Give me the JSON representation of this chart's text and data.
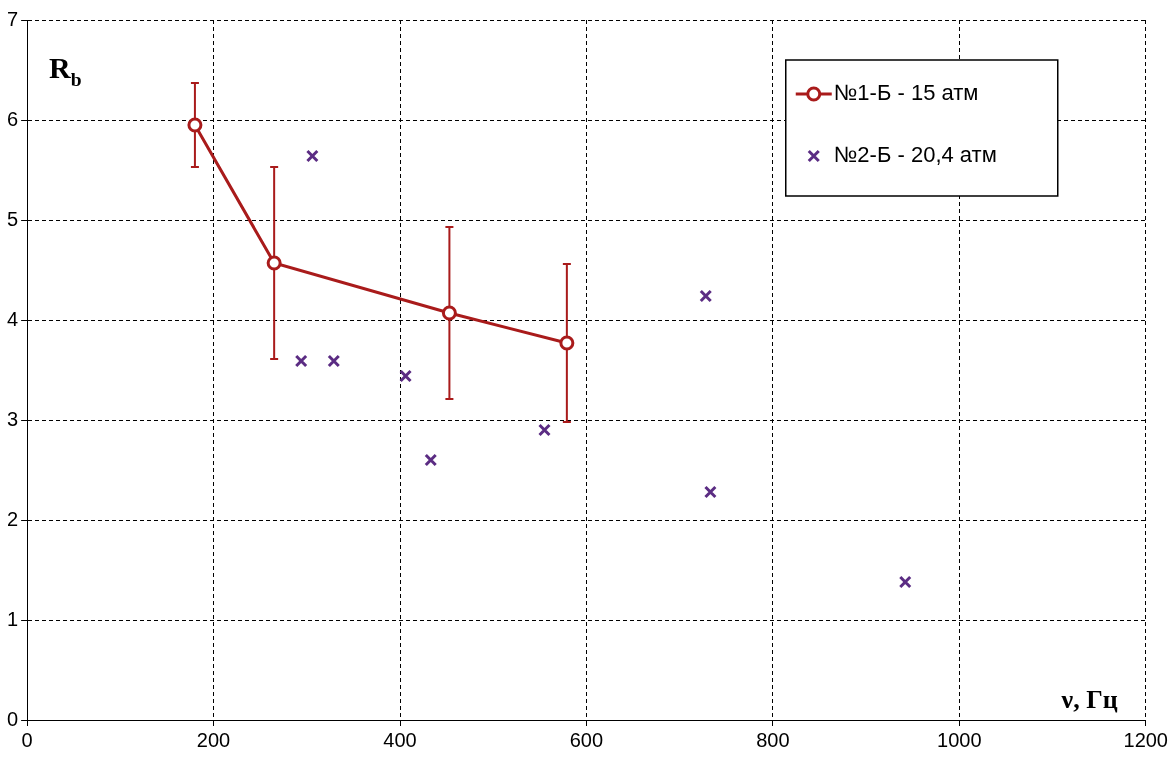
{
  "chart_data": {
    "type": "line",
    "xlabel": "ν, Гц",
    "ylabel": "R$_{b}$",
    "xlim": [
      0,
      1200
    ],
    "xticks": [
      0,
      200,
      400,
      600,
      800,
      1000,
      1200
    ],
    "ylim": [
      0,
      7
    ],
    "yticks": [
      0,
      1,
      2,
      3,
      4,
      5,
      6,
      7
    ],
    "grid": true,
    "legend": "top right",
    "series": [
      {
        "name": "№1-Б - 15 атм",
        "marker": "circle",
        "color": "#a91b1b",
        "x": [
          180,
          265,
          453,
          579
        ],
        "values": [
          5.95,
          4.57,
          4.07,
          3.77
        ],
        "errors": [
          0.42,
          0.96,
          0.86,
          0.79
        ]
      },
      {
        "name": "№2-Б - 20,4 атм",
        "type": "scatter",
        "marker": "cross",
        "color": "#5b2c83",
        "x": [
          306,
          294,
          329,
          406,
          433,
          555,
          728,
          733,
          942
        ],
        "values": [
          5.64,
          3.59,
          3.59,
          3.44,
          2.6,
          2.9,
          4.24,
          2.28,
          1.38
        ]
      }
    ]
  }
}
